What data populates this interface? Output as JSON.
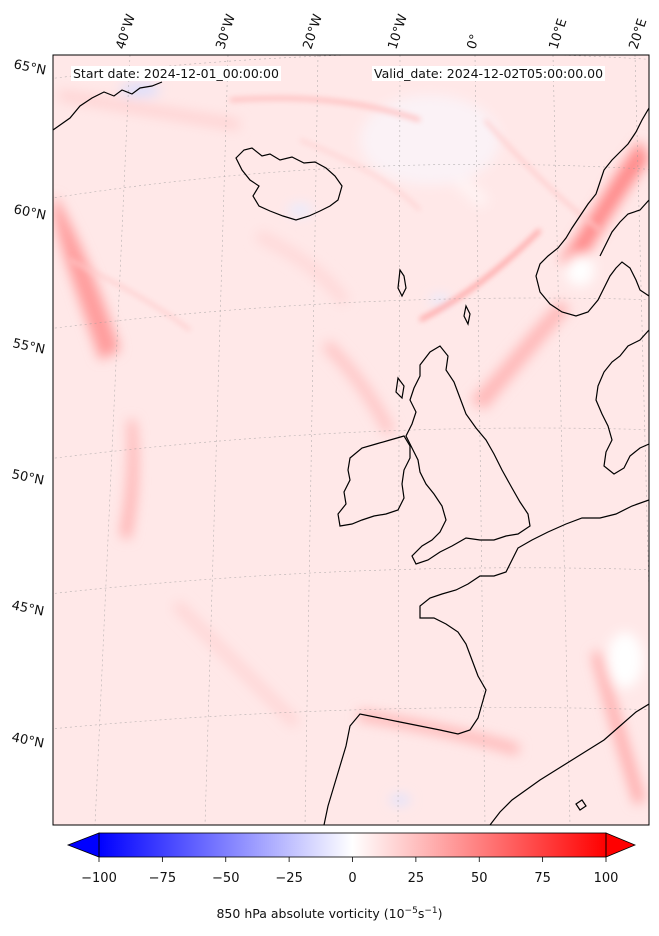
{
  "header": {
    "start_date": "Start date: 2024-12-01_00:00:00",
    "valid_date": "Valid_date: 2024-12-02T05:00:00.00"
  },
  "longitude_labels": [
    "40°W",
    "30°W",
    "20°W",
    "10°W",
    "0°",
    "10°E",
    "20°E"
  ],
  "latitude_labels": [
    "65°N",
    "60°N",
    "55°N",
    "50°N",
    "45°N",
    "40°N"
  ],
  "field": {
    "variable": "850 hPa absolute vorticity",
    "units": "10^-5 s^-1",
    "colormap": "bwr",
    "colors": {
      "min": "#0000ff",
      "mid": "#ffffff",
      "max": "#ff0000"
    }
  },
  "colorbar": {
    "min": -100,
    "max": 100,
    "extend": "both",
    "ticks": [
      "−100",
      "−75",
      "−50",
      "−25",
      "0",
      "25",
      "50",
      "75",
      "100"
    ],
    "label_main": "850 hPa absolute vorticity (10",
    "label_exp1": "−5",
    "label_mid": "s",
    "label_exp2": "−1",
    "label_end": ")"
  },
  "coastline_color": "#000000"
}
